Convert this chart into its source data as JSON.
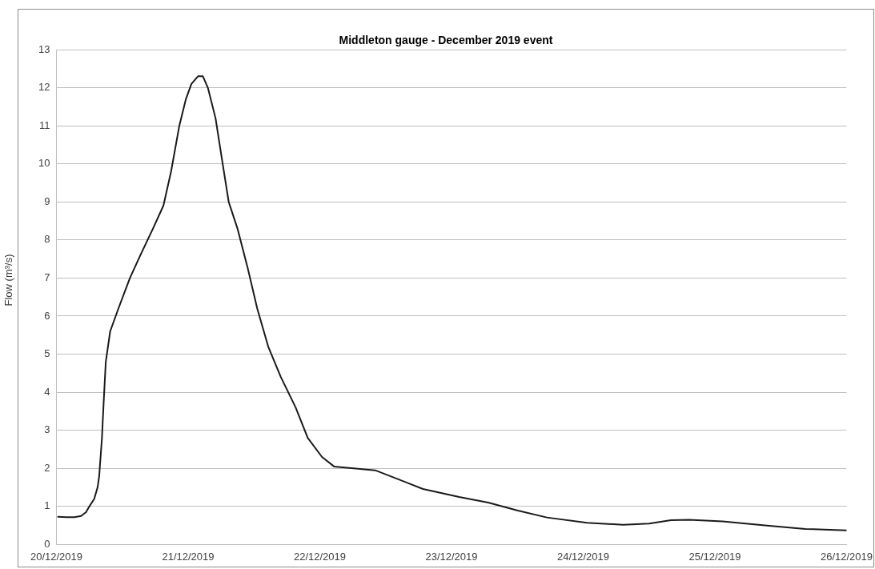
{
  "chart_data": {
    "type": "line",
    "title": "Middleton gauge - December 2019 event",
    "ylabel": "Flow (m³/s)",
    "xlim": [
      "2019-12-20T00:00",
      "2019-12-26T00:00"
    ],
    "xticks": [
      {
        "value": "2019-12-20",
        "label": "20/12/2019"
      },
      {
        "value": "2019-12-21",
        "label": "21/12/2019"
      },
      {
        "value": "2019-12-22",
        "label": "22/12/2019"
      },
      {
        "value": "2019-12-23",
        "label": "23/12/2019"
      },
      {
        "value": "2019-12-24",
        "label": "24/12/2019"
      },
      {
        "value": "2019-12-25",
        "label": "25/12/2019"
      },
      {
        "value": "2019-12-26",
        "label": "26/12/2019"
      }
    ],
    "ylim": [
      0,
      13
    ],
    "yticks": [
      0,
      1,
      2,
      3,
      4,
      5,
      6,
      7,
      8,
      9,
      10,
      11,
      12,
      13
    ],
    "grid": "y",
    "legend": false,
    "marker": "none",
    "line_style": "solid",
    "series": [
      {
        "color": "#1a1a1a",
        "x": [
          "2019-12-20T00:18",
          "2019-12-20T01:48",
          "2019-12-20T03:18",
          "2019-12-20T04:30",
          "2019-12-20T05:24",
          "2019-12-20T06:00",
          "2019-12-20T06:54",
          "2019-12-20T07:30",
          "2019-12-20T07:48",
          "2019-12-20T08:18",
          "2019-12-20T08:36",
          "2019-12-20T09:00",
          "2019-12-20T09:48",
          "2019-12-20T11:18",
          "2019-12-20T13:24",
          "2019-12-20T15:18",
          "2019-12-20T17:36",
          "2019-12-20T19:30",
          "2019-12-20T20:54",
          "2019-12-20T22:24",
          "2019-12-20T23:36",
          "2019-12-21T00:36",
          "2019-12-21T01:48",
          "2019-12-21T02:42",
          "2019-12-21T03:36",
          "2019-12-21T05:00",
          "2019-12-21T06:18",
          "2019-12-21T07:24",
          "2019-12-21T09:00",
          "2019-12-21T10:48",
          "2019-12-21T12:36",
          "2019-12-21T14:36",
          "2019-12-21T16:54",
          "2019-12-21T19:36",
          "2019-12-21T21:48",
          "2019-12-22T00:24",
          "2019-12-22T02:36",
          "2019-12-22T06:12",
          "2019-12-22T10:06",
          "2019-12-22T18:48",
          "2019-12-23T01:24",
          "2019-12-23T06:42",
          "2019-12-23T12:06",
          "2019-12-23T17:24",
          "2019-12-24T00:42",
          "2019-12-24T07:18",
          "2019-12-24T12:00",
          "2019-12-24T16:00",
          "2019-12-24T19:18",
          "2019-12-25T01:24",
          "2019-12-25T09:54",
          "2019-12-25T16:30",
          "2019-12-26T00:00"
        ],
        "values": [
          0.73,
          0.72,
          0.72,
          0.75,
          0.85,
          1.0,
          1.2,
          1.5,
          1.8,
          2.8,
          3.7,
          4.8,
          5.6,
          6.2,
          7.0,
          7.6,
          8.3,
          8.9,
          9.8,
          11.0,
          11.7,
          12.1,
          12.3,
          12.3,
          12.0,
          11.2,
          10.0,
          9.0,
          8.3,
          7.3,
          6.2,
          5.2,
          4.4,
          3.6,
          2.8,
          2.3,
          2.05,
          2.0,
          1.95,
          1.46,
          1.25,
          1.1,
          0.89,
          0.71,
          0.57,
          0.52,
          0.55,
          0.64,
          0.65,
          0.61,
          0.49,
          0.41,
          0.37
        ]
      }
    ]
  }
}
